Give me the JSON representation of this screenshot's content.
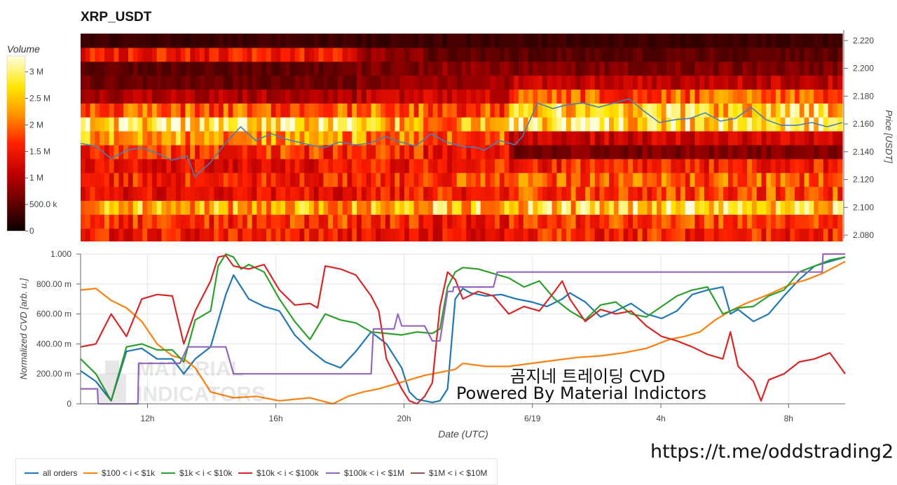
{
  "chart_data": [
    {
      "type": "heatmap",
      "title": "XRP_USDT",
      "ylabel": "Price [USDT]",
      "ylim": [
        2.0775,
        2.2275
      ],
      "y_ticks": [
        "2.080",
        "2.100",
        "2.120",
        "2.140",
        "2.160",
        "2.180",
        "2.200",
        "2.220"
      ],
      "y_tick_values": [
        2.08,
        2.1,
        2.12,
        2.14,
        2.16,
        2.18,
        2.2,
        2.22
      ],
      "colorbar": {
        "title": "Volume",
        "ticks": [
          "0",
          "500.0 k",
          "1 M",
          "1.5 M",
          "2 M",
          "2.5 M",
          "3 M"
        ],
        "tick_values": [
          0,
          500000,
          1000000,
          1500000,
          2000000,
          2500000,
          3000000
        ],
        "max": 3300000
      },
      "price_bands": [
        2.08,
        2.09,
        2.1,
        2.11,
        2.12,
        2.13,
        2.14,
        2.15,
        2.16,
        2.17,
        2.18,
        2.19,
        2.2,
        2.21,
        2.22
      ],
      "volume_profile_segments": [
        {
          "t0": 0.0,
          "t1": 0.36,
          "volumes": [
            1500000,
            1700000,
            2400000,
            1400000,
            1600000,
            1400000,
            1700000,
            2300000,
            2800000,
            1900000,
            1000000,
            600000,
            500000,
            1500000,
            300000
          ]
        },
        {
          "t0": 0.36,
          "t1": 0.45,
          "volumes": [
            1400000,
            1600000,
            2500000,
            1500000,
            1600000,
            1500000,
            1800000,
            2100000,
            2400000,
            2000000,
            1100000,
            800000,
            700000,
            800000,
            300000
          ]
        },
        {
          "t0": 0.45,
          "t1": 0.56,
          "volumes": [
            1400000,
            1500000,
            2500000,
            1600000,
            1800000,
            1600000,
            1400000,
            1900000,
            2300000,
            1800000,
            1200000,
            900000,
            800000,
            500000,
            300000
          ]
        },
        {
          "t0": 0.56,
          "t1": 1.0,
          "volumes": [
            1600000,
            1700000,
            2600000,
            1800000,
            1900000,
            1600000,
            700000,
            1200000,
            2800000,
            2600000,
            1900000,
            1100000,
            700000,
            500000,
            300000
          ]
        }
      ],
      "series": [
        {
          "name": "price",
          "color": "#4a7fb5",
          "x": [
            0,
            0.02,
            0.04,
            0.06,
            0.08,
            0.1,
            0.12,
            0.14,
            0.15,
            0.17,
            0.19,
            0.21,
            0.23,
            0.25,
            0.27,
            0.3,
            0.32,
            0.34,
            0.36,
            0.38,
            0.4,
            0.42,
            0.44,
            0.46,
            0.48,
            0.5,
            0.52,
            0.53,
            0.55,
            0.57,
            0.58,
            0.6,
            0.62,
            0.64,
            0.66,
            0.68,
            0.7,
            0.72,
            0.74,
            0.76,
            0.78,
            0.8,
            0.82,
            0.84,
            0.86,
            0.88,
            0.9,
            0.92,
            0.94,
            0.96,
            0.98,
            1.0
          ],
          "y": [
            2.146,
            2.144,
            2.135,
            2.141,
            2.143,
            2.139,
            2.134,
            2.137,
            2.122,
            2.132,
            2.146,
            2.158,
            2.148,
            2.153,
            2.149,
            2.145,
            2.143,
            2.147,
            2.145,
            2.146,
            2.151,
            2.147,
            2.144,
            2.153,
            2.147,
            2.144,
            2.143,
            2.141,
            2.148,
            2.145,
            2.151,
            2.175,
            2.171,
            2.174,
            2.175,
            2.172,
            2.175,
            2.178,
            2.169,
            2.161,
            2.163,
            2.164,
            2.168,
            2.162,
            2.164,
            2.172,
            2.163,
            2.159,
            2.159,
            2.161,
            2.158,
            2.161
          ]
        }
      ]
    },
    {
      "type": "line",
      "title": "",
      "xlabel": "Date (UTC)",
      "ylabel": "Normalized CVD [arb. u.]",
      "ylim": [
        0,
        1
      ],
      "y_ticks": [
        "0",
        "200.00 m",
        "400.00 m",
        "600.00 m",
        "800.00 m",
        "1.000"
      ],
      "y_tick_values": [
        0,
        0.2,
        0.4,
        0.6,
        0.8,
        1.0
      ],
      "x_ticks": [
        "12h",
        "16h",
        "20h",
        "6/19",
        "4h",
        "8h"
      ],
      "x_tick_values": [
        0.0875,
        0.2554,
        0.423,
        0.591,
        0.759,
        0.926
      ],
      "legend_position": "bottom",
      "series": [
        {
          "name": "all orders",
          "color": "#1f77b4",
          "x": [
            0,
            0.02,
            0.04,
            0.06,
            0.08,
            0.1,
            0.12,
            0.135,
            0.15,
            0.17,
            0.19,
            0.2,
            0.22,
            0.24,
            0.26,
            0.28,
            0.3,
            0.32,
            0.34,
            0.36,
            0.38,
            0.4,
            0.42,
            0.43,
            0.44,
            0.46,
            0.47,
            0.48,
            0.49,
            0.5,
            0.51,
            0.53,
            0.55,
            0.57,
            0.59,
            0.61,
            0.63,
            0.64,
            0.66,
            0.68,
            0.7,
            0.72,
            0.74,
            0.76,
            0.78,
            0.8,
            0.82,
            0.84,
            0.85,
            0.86,
            0.88,
            0.9,
            0.92,
            0.94,
            0.96,
            0.98,
            1.0
          ],
          "y": [
            0.22,
            0.15,
            0.02,
            0.35,
            0.37,
            0.3,
            0.3,
            0.2,
            0.3,
            0.38,
            0.73,
            0.86,
            0.7,
            0.65,
            0.62,
            0.46,
            0.36,
            0.28,
            0.24,
            0.35,
            0.48,
            0.4,
            0.24,
            0.08,
            0.03,
            0.01,
            0.02,
            0.1,
            0.7,
            0.77,
            0.74,
            0.72,
            0.73,
            0.7,
            0.68,
            0.65,
            0.7,
            0.74,
            0.68,
            0.58,
            0.62,
            0.67,
            0.6,
            0.57,
            0.62,
            0.73,
            0.76,
            0.78,
            0.6,
            0.63,
            0.55,
            0.6,
            0.72,
            0.83,
            0.92,
            0.95,
            0.98
          ]
        },
        {
          "name": "$100 < i < $1k",
          "color": "#ff7f0e",
          "x": [
            0,
            0.02,
            0.04,
            0.06,
            0.08,
            0.1,
            0.12,
            0.135,
            0.15,
            0.17,
            0.2,
            0.23,
            0.26,
            0.3,
            0.33,
            0.35,
            0.37,
            0.39,
            0.41,
            0.43,
            0.45,
            0.47,
            0.49,
            0.5,
            0.53,
            0.56,
            0.59,
            0.62,
            0.65,
            0.68,
            0.71,
            0.74,
            0.77,
            0.79,
            0.81,
            0.83,
            0.85,
            0.87,
            0.9,
            0.93,
            0.95,
            0.97,
            1.0
          ],
          "y": [
            0.76,
            0.77,
            0.69,
            0.64,
            0.55,
            0.4,
            0.32,
            0.3,
            0.24,
            0.08,
            0.04,
            0.05,
            0.02,
            0.04,
            0.0,
            0.05,
            0.08,
            0.1,
            0.13,
            0.16,
            0.19,
            0.21,
            0.23,
            0.27,
            0.25,
            0.25,
            0.27,
            0.29,
            0.31,
            0.32,
            0.34,
            0.37,
            0.43,
            0.45,
            0.48,
            0.56,
            0.62,
            0.67,
            0.73,
            0.8,
            0.83,
            0.87,
            0.95
          ]
        },
        {
          "name": "$1k < i < $10k",
          "color": "#2ca02c",
          "x": [
            0,
            0.02,
            0.04,
            0.06,
            0.08,
            0.1,
            0.12,
            0.135,
            0.15,
            0.17,
            0.18,
            0.19,
            0.2,
            0.21,
            0.22,
            0.24,
            0.26,
            0.28,
            0.3,
            0.32,
            0.34,
            0.36,
            0.38,
            0.4,
            0.42,
            0.44,
            0.46,
            0.47,
            0.48,
            0.49,
            0.5,
            0.52,
            0.54,
            0.56,
            0.58,
            0.6,
            0.62,
            0.64,
            0.66,
            0.68,
            0.7,
            0.72,
            0.74,
            0.76,
            0.78,
            0.8,
            0.82,
            0.84,
            0.86,
            0.88,
            0.9,
            0.92,
            0.94,
            0.96,
            0.98,
            1.0
          ],
          "y": [
            0.3,
            0.2,
            0.02,
            0.38,
            0.4,
            0.36,
            0.36,
            0.28,
            0.56,
            0.62,
            0.92,
            1.0,
            0.98,
            0.9,
            0.93,
            0.88,
            0.7,
            0.55,
            0.43,
            0.6,
            0.56,
            0.54,
            0.48,
            0.47,
            0.46,
            0.48,
            0.47,
            0.5,
            0.78,
            0.88,
            0.91,
            0.9,
            0.87,
            0.84,
            0.78,
            0.82,
            0.7,
            0.62,
            0.56,
            0.66,
            0.68,
            0.6,
            0.58,
            0.65,
            0.72,
            0.76,
            0.78,
            0.6,
            0.64,
            0.65,
            0.72,
            0.76,
            0.88,
            0.92,
            0.96,
            0.98
          ]
        },
        {
          "name": "$10k < i < $100k",
          "color": "#d62728",
          "x": [
            0,
            0.02,
            0.04,
            0.06,
            0.08,
            0.1,
            0.12,
            0.135,
            0.15,
            0.17,
            0.18,
            0.19,
            0.2,
            0.22,
            0.24,
            0.26,
            0.28,
            0.3,
            0.31,
            0.32,
            0.34,
            0.36,
            0.38,
            0.39,
            0.4,
            0.41,
            0.42,
            0.43,
            0.44,
            0.45,
            0.46,
            0.47,
            0.48,
            0.49,
            0.5,
            0.52,
            0.54,
            0.56,
            0.58,
            0.6,
            0.62,
            0.63,
            0.64,
            0.66,
            0.68,
            0.7,
            0.72,
            0.74,
            0.76,
            0.78,
            0.8,
            0.82,
            0.84,
            0.85,
            0.86,
            0.88,
            0.89,
            0.9,
            0.92,
            0.94,
            0.96,
            0.98,
            1.0
          ],
          "y": [
            0.38,
            0.4,
            0.6,
            0.45,
            0.7,
            0.73,
            0.72,
            0.4,
            0.62,
            0.82,
            0.98,
            0.99,
            0.92,
            0.9,
            0.93,
            0.76,
            0.66,
            0.67,
            0.64,
            0.92,
            0.9,
            0.86,
            0.72,
            0.62,
            0.3,
            0.2,
            0.1,
            0.02,
            0.0,
            0.05,
            0.14,
            0.65,
            0.88,
            0.83,
            0.7,
            0.75,
            0.72,
            0.6,
            0.65,
            0.62,
            0.75,
            0.82,
            0.7,
            0.55,
            0.63,
            0.6,
            0.62,
            0.52,
            0.45,
            0.42,
            0.38,
            0.33,
            0.3,
            0.48,
            0.25,
            0.15,
            0.02,
            0.16,
            0.2,
            0.28,
            0.3,
            0.34,
            0.2
          ]
        },
        {
          "name": "$100k < i < $1M",
          "color": "#9467bd",
          "x": [
            0,
            0.022,
            0.023,
            0.055,
            0.075,
            0.076,
            0.12,
            0.13,
            0.14,
            0.17,
            0.19,
            0.2,
            0.38,
            0.383,
            0.41,
            0.415,
            0.42,
            0.45,
            0.46,
            0.47,
            0.48,
            0.487,
            0.488,
            0.54,
            0.545,
            0.97,
            0.971,
            1.0
          ],
          "y": [
            0.1,
            0.1,
            0.0,
            0.0,
            0.0,
            0.27,
            0.27,
            0.27,
            0.38,
            0.38,
            0.38,
            0.2,
            0.2,
            0.5,
            0.5,
            0.6,
            0.52,
            0.52,
            0.42,
            0.42,
            0.75,
            0.75,
            0.78,
            0.78,
            0.88,
            0.88,
            1.0,
            1.0
          ]
        },
        {
          "name": "$1M < i < $10M",
          "color": "#8c564b",
          "x": [],
          "y": []
        }
      ]
    }
  ],
  "annotations": {
    "watermark_line1": "곰지네 트레이딩 CVD",
    "watermark_line2": "Powered By Material Indictors",
    "link": "https://t.me/oddstrading2",
    "logo_text_line1": "MATERIAL",
    "logo_text_line2": "INDICATORS"
  }
}
